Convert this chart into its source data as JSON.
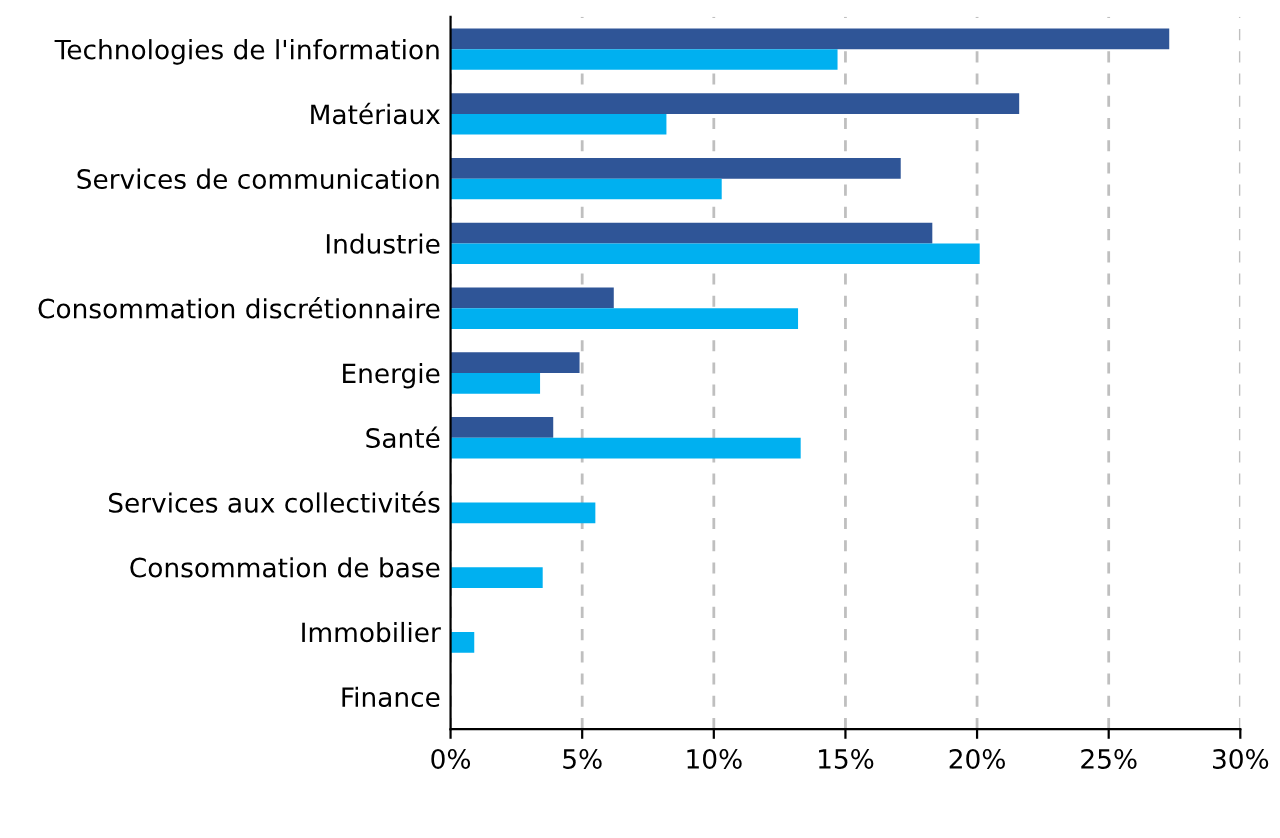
{
  "chart_data": {
    "type": "bar",
    "orientation": "horizontal",
    "categories": [
      "Technologies de l'information",
      "Matériaux",
      "Services de communication",
      "Industrie",
      "Consommation discrétionnaire",
      "Energie",
      "Santé",
      "Services aux collectivités",
      "Consommation de base",
      "Immobilier",
      "Finance"
    ],
    "series": [
      {
        "color": "#2f5597",
        "values": [
          27.3,
          21.6,
          17.1,
          18.3,
          6.2,
          4.9,
          3.9,
          0,
          0,
          0,
          0
        ]
      },
      {
        "color": "#00b0f0",
        "values": [
          14.7,
          8.2,
          10.3,
          20.1,
          13.2,
          3.4,
          13.3,
          5.5,
          3.5,
          0.9,
          0
        ]
      }
    ],
    "xlim": [
      0,
      30
    ],
    "xticks": [
      {
        "value": 0,
        "label": "0%"
      },
      {
        "value": 5,
        "label": "5%"
      },
      {
        "value": 10,
        "label": "10%"
      },
      {
        "value": 15,
        "label": "15%"
      },
      {
        "value": 20,
        "label": "20%"
      },
      {
        "value": 25,
        "label": "25%"
      },
      {
        "value": 30,
        "label": "30%"
      }
    ],
    "grid": "x"
  }
}
